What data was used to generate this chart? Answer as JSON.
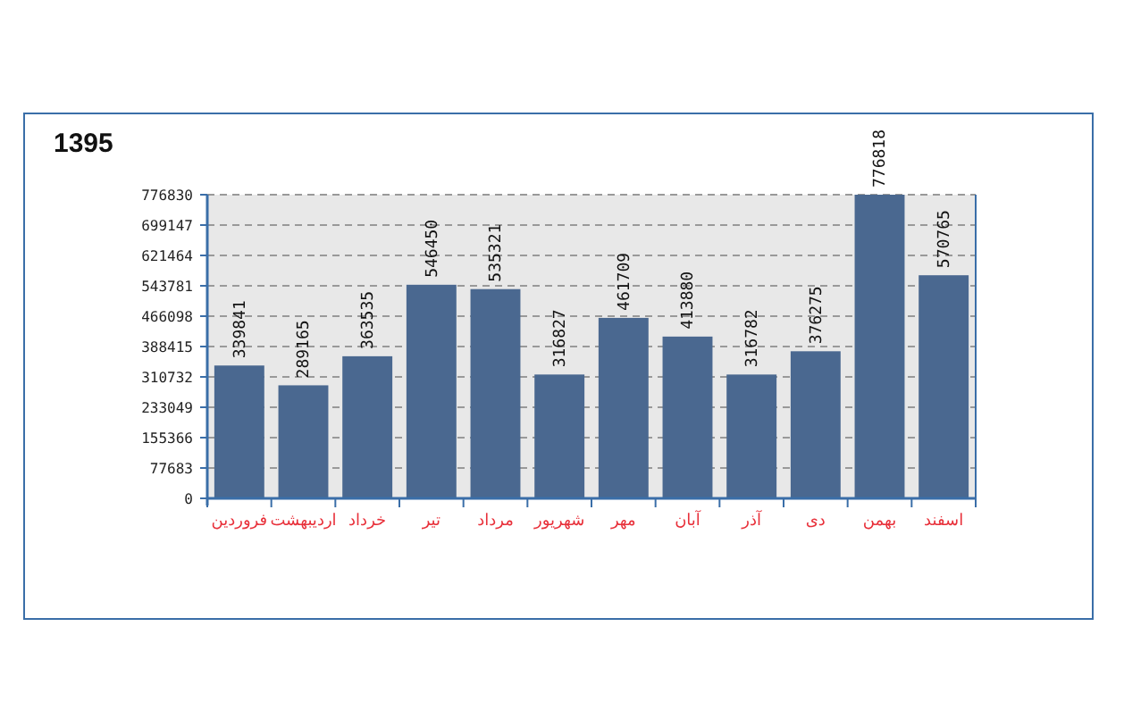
{
  "chart_data": {
    "type": "bar",
    "title": "1395",
    "categories": [
      "فروردین",
      "اردیبهشت",
      "خرداد",
      "تیر",
      "مرداد",
      "شهریور",
      "مهر",
      "آبان",
      "آذر",
      "دی",
      "بهمن",
      "اسفند"
    ],
    "values": [
      339841,
      289165,
      363535,
      546450,
      535321,
      316827,
      461709,
      413880,
      316782,
      376275,
      776818,
      570765
    ],
    "color": "#4a6890",
    "ylim": [
      0,
      776830
    ],
    "yticks": [
      0,
      77683,
      155366,
      233049,
      310732,
      388415,
      466098,
      543781,
      621464,
      699147,
      776830
    ],
    "grid": "y",
    "data_labels": true
  }
}
